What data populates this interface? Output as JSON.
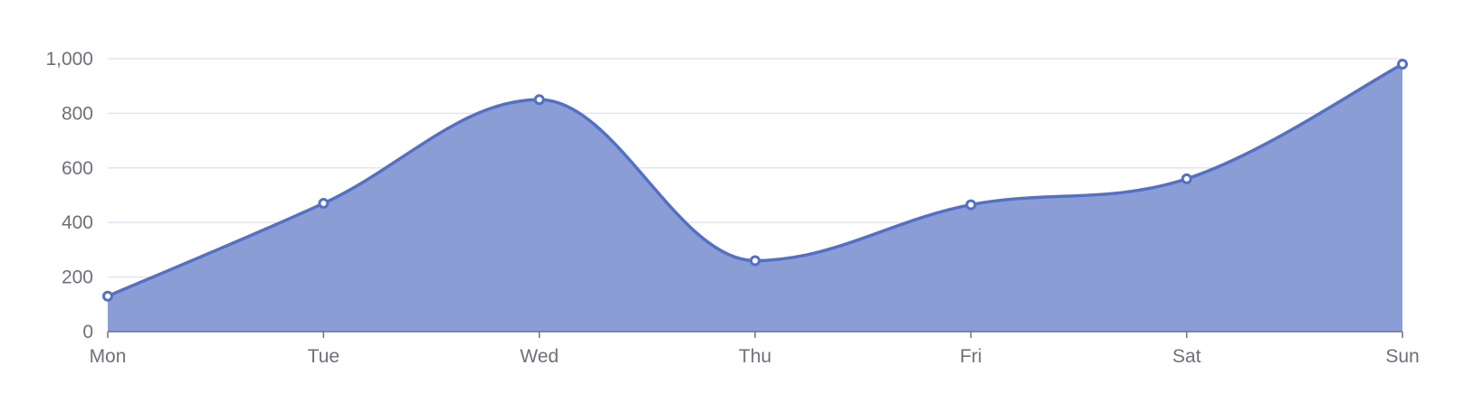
{
  "chart_data": {
    "type": "area",
    "title": "",
    "xlabel": "",
    "ylabel": "",
    "categories": [
      "Mon",
      "Tue",
      "Wed",
      "Thu",
      "Fri",
      "Sat",
      "Sun"
    ],
    "series": [
      {
        "values": [
          130,
          470,
          850,
          260,
          465,
          560,
          980
        ]
      }
    ],
    "ylim": [
      0,
      1000
    ],
    "y_ticks": [
      0,
      200,
      400,
      600,
      800,
      1000
    ],
    "y_tick_labels": [
      "0",
      "200",
      "400",
      "600",
      "800",
      "1,000"
    ],
    "smooth": true,
    "grid": true,
    "legend": false,
    "colors": {
      "line": "#5470c6",
      "area": "#8a9dd5",
      "grid": "#e0e6f1",
      "axis": "#6e7079",
      "text": "#6e7079",
      "point_fill": "#ffffff"
    }
  }
}
